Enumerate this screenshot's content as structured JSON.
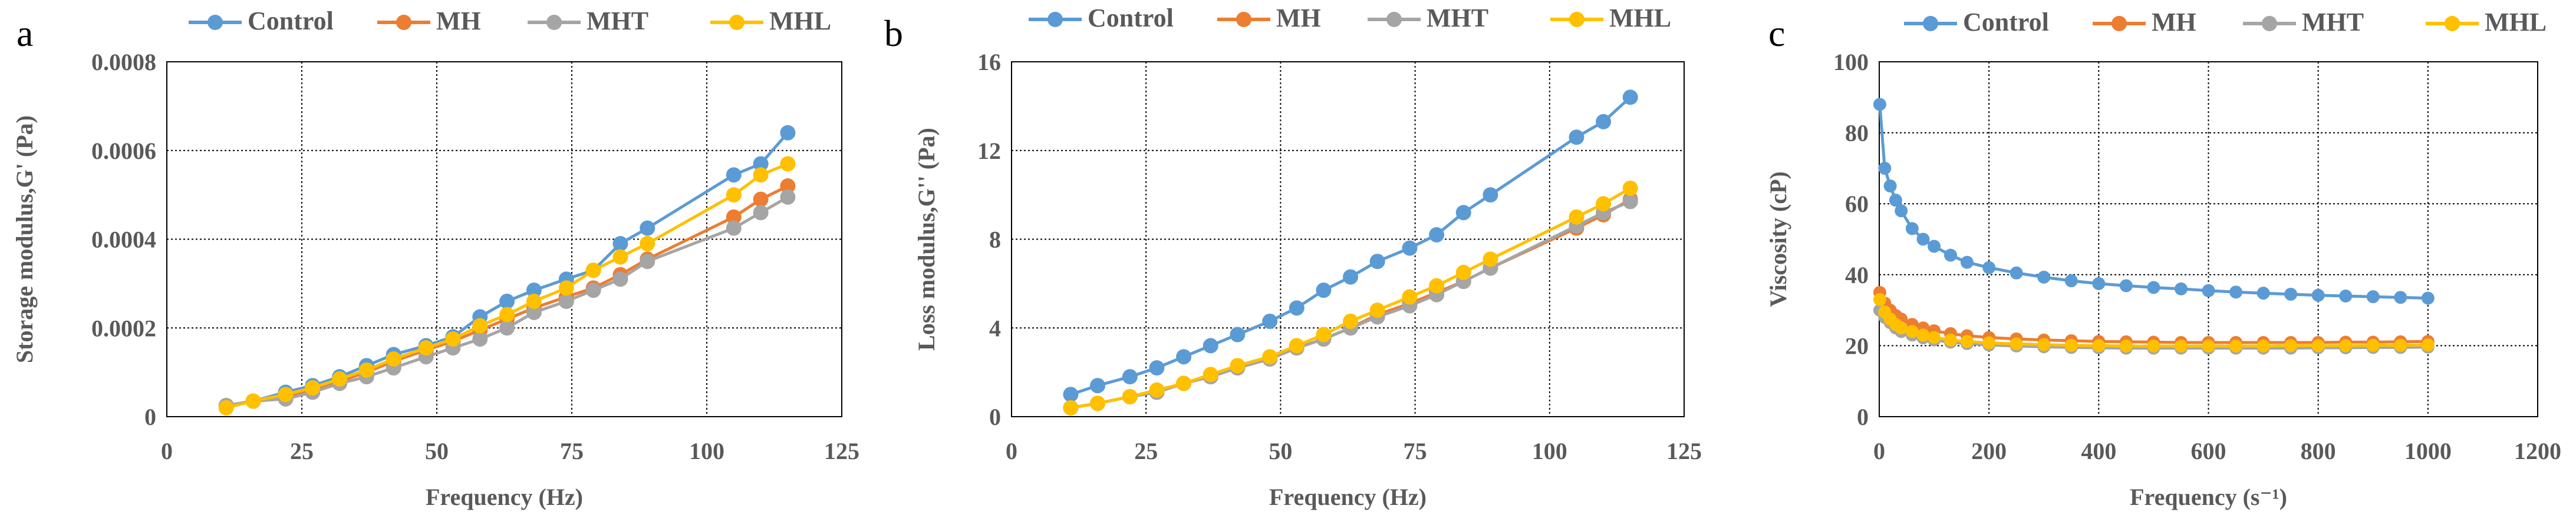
{
  "chart_data": [
    {
      "type": "line",
      "panel_label": "a",
      "xlabel": "Frequency (Hz)",
      "ylabel": "Storage modulus,G' (Pa)",
      "xlim": [
        0,
        125
      ],
      "ylim": [
        0,
        0.0008
      ],
      "xticks": [
        0,
        25,
        50,
        75,
        100,
        125
      ],
      "yticks": [
        0,
        0.0002,
        0.0004,
        0.0006,
        0.0008
      ],
      "xtick_labels": [
        "0",
        "25",
        "50",
        "75",
        "100",
        "125"
      ],
      "ytick_labels": [
        "0",
        "0.0002",
        "0.0004",
        "0.0006",
        "0.0008"
      ],
      "grid": true,
      "legend": "top",
      "x": [
        11,
        16,
        22,
        27,
        32,
        37,
        42,
        48,
        53,
        58,
        63,
        68,
        74,
        79,
        84,
        89,
        105,
        110,
        115
      ],
      "series": [
        {
          "name": "Control",
          "color": "#5B9BD5",
          "values": [
            2.5e-05,
            3.5e-05,
            5.5e-05,
            7e-05,
            9e-05,
            0.000115,
            0.00014,
            0.00016,
            0.00018,
            0.000225,
            0.00026,
            0.000285,
            0.00031,
            0.00033,
            0.00039,
            0.000425,
            0.000545,
            0.00057,
            0.00064
          ]
        },
        {
          "name": "MH",
          "color": "#ED7D31",
          "values": [
            2.5e-05,
            3.5e-05,
            4.5e-05,
            6e-05,
            8e-05,
            0.0001,
            0.000125,
            0.00015,
            0.00017,
            0.000195,
            0.00022,
            0.000245,
            0.00027,
            0.00029,
            0.00032,
            0.000355,
            0.00045,
            0.00049,
            0.00052
          ]
        },
        {
          "name": "MHT",
          "color": "#A5A5A5",
          "values": [
            2.5e-05,
            3.5e-05,
            4e-05,
            5.5e-05,
            7.5e-05,
            9e-05,
            0.00011,
            0.000135,
            0.000155,
            0.000175,
            0.0002,
            0.000235,
            0.00026,
            0.000285,
            0.00031,
            0.00035,
            0.000425,
            0.00046,
            0.000495
          ]
        },
        {
          "name": "MHL",
          "color": "#FFC000",
          "values": [
            2e-05,
            3.5e-05,
            5e-05,
            6.5e-05,
            8.5e-05,
            0.000105,
            0.00013,
            0.000155,
            0.000175,
            0.000205,
            0.00023,
            0.00026,
            0.00029,
            0.00033,
            0.00036,
            0.00039,
            0.0005,
            0.000545,
            0.00057
          ]
        }
      ]
    },
    {
      "type": "line",
      "panel_label": "b",
      "xlabel": "Frequency (Hz)",
      "ylabel": "Loss modulus,G'' (Pa)",
      "xlim": [
        0,
        125
      ],
      "ylim": [
        0,
        16
      ],
      "xticks": [
        0,
        25,
        50,
        75,
        100,
        125
      ],
      "yticks": [
        0,
        4,
        8,
        12,
        16
      ],
      "xtick_labels": [
        "0",
        "25",
        "50",
        "75",
        "100",
        "125"
      ],
      "ytick_labels": [
        "0",
        "4",
        "8",
        "12",
        "16"
      ],
      "grid": true,
      "legend": "top",
      "x": [
        11,
        16,
        22,
        27,
        32,
        37,
        42,
        48,
        53,
        58,
        63,
        68,
        74,
        79,
        84,
        89,
        105,
        110,
        115
      ],
      "series": [
        {
          "name": "Control",
          "color": "#5B9BD5",
          "values": [
            1.0,
            1.4,
            1.8,
            2.2,
            2.7,
            3.2,
            3.7,
            4.3,
            4.9,
            5.7,
            6.3,
            7.0,
            7.6,
            8.2,
            9.2,
            10.0,
            12.6,
            13.3,
            14.4
          ]
        },
        {
          "name": "MH",
          "color": "#ED7D31",
          "values": [
            0.4,
            0.6,
            0.9,
            1.1,
            1.5,
            1.8,
            2.2,
            2.6,
            3.1,
            3.5,
            4.0,
            4.6,
            5.1,
            5.6,
            6.1,
            6.7,
            8.5,
            9.1,
            9.8
          ]
        },
        {
          "name": "MHT",
          "color": "#A5A5A5",
          "values": [
            0.4,
            0.6,
            0.9,
            1.1,
            1.5,
            1.8,
            2.2,
            2.6,
            3.1,
            3.5,
            4.0,
            4.5,
            5.0,
            5.5,
            6.1,
            6.7,
            8.6,
            9.2,
            9.7
          ]
        },
        {
          "name": "MHL",
          "color": "#FFC000",
          "values": [
            0.4,
            0.6,
            0.9,
            1.2,
            1.5,
            1.9,
            2.3,
            2.7,
            3.2,
            3.7,
            4.3,
            4.8,
            5.4,
            5.9,
            6.5,
            7.1,
            9.0,
            9.6,
            10.3
          ]
        }
      ]
    },
    {
      "type": "scatter",
      "panel_label": "c",
      "xlabel": "Frequency (s⁻¹)",
      "ylabel": "Viscosity (cP)",
      "xlim": [
        0,
        1200
      ],
      "ylim": [
        0,
        100
      ],
      "xticks": [
        0,
        200,
        400,
        600,
        800,
        1000,
        1200
      ],
      "yticks": [
        0,
        20,
        40,
        60,
        80,
        100
      ],
      "xtick_labels": [
        "0",
        "200",
        "400",
        "600",
        "800",
        "1000",
        "1200"
      ],
      "ytick_labels": [
        "0",
        "20",
        "40",
        "60",
        "80",
        "100"
      ],
      "grid": true,
      "legend": "top",
      "x": [
        1,
        10,
        20,
        30,
        40,
        60,
        80,
        100,
        130,
        160,
        200,
        250,
        300,
        350,
        400,
        450,
        500,
        550,
        600,
        650,
        700,
        750,
        800,
        850,
        900,
        950,
        1000
      ],
      "series": [
        {
          "name": "Control",
          "color": "#5B9BD5",
          "values": [
            88,
            70,
            65,
            61,
            58,
            53,
            50,
            48,
            45.5,
            43.5,
            42,
            40.5,
            39.3,
            38.3,
            37.5,
            36.9,
            36.4,
            36,
            35.5,
            35.1,
            34.8,
            34.5,
            34.2,
            34,
            33.8,
            33.6,
            33.4
          ]
        },
        {
          "name": "MH",
          "color": "#ED7D31",
          "values": [
            35,
            32,
            30,
            28.5,
            27.5,
            26,
            25,
            24.2,
            23.4,
            22.8,
            22.3,
            21.9,
            21.6,
            21.4,
            21.2,
            21.1,
            21,
            20.9,
            20.9,
            20.9,
            20.9,
            20.9,
            20.9,
            21,
            21,
            21.1,
            21.2
          ]
        },
        {
          "name": "MHT",
          "color": "#A5A5A5",
          "values": [
            30,
            28,
            26.5,
            25,
            24,
            23,
            22.2,
            21.6,
            21,
            20.6,
            20.2,
            19.9,
            19.7,
            19.5,
            19.4,
            19.3,
            19.3,
            19.3,
            19.3,
            19.3,
            19.3,
            19.3,
            19.4,
            19.4,
            19.5,
            19.5,
            19.6
          ]
        },
        {
          "name": "MHL",
          "color": "#FFC000",
          "values": [
            33,
            29.5,
            27.5,
            26,
            25,
            24,
            23,
            22.3,
            21.6,
            21.2,
            20.8,
            20.5,
            20.3,
            20.1,
            20,
            19.9,
            19.9,
            19.9,
            19.9,
            19.9,
            19.9,
            20,
            20,
            20,
            20.1,
            20.1,
            20.2
          ]
        }
      ]
    }
  ]
}
